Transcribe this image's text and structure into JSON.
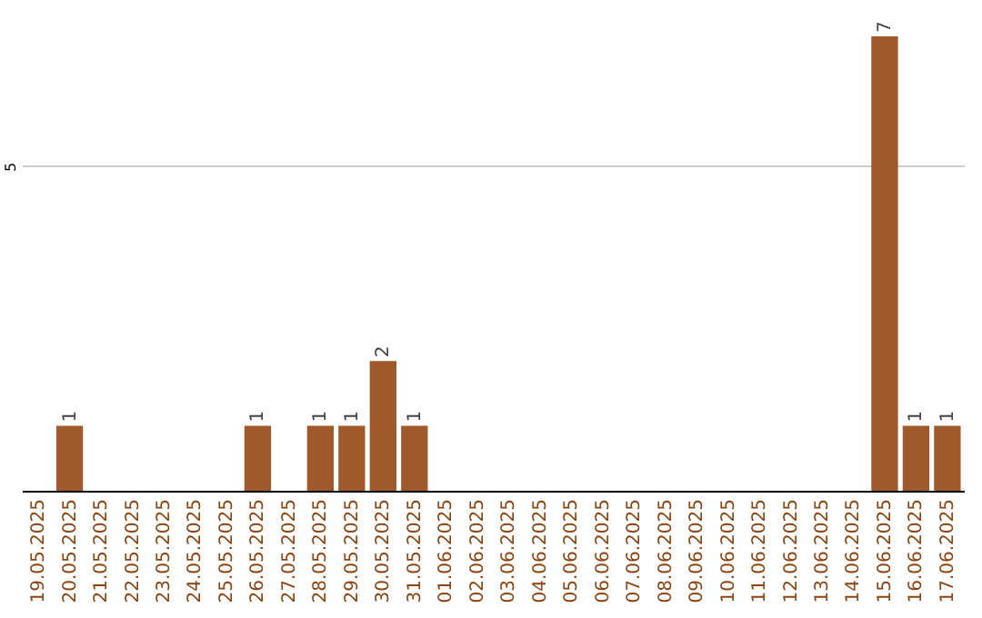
{
  "chart_data": {
    "type": "bar",
    "categories": [
      "19.05.2025",
      "20.05.2025",
      "21.05.2025",
      "22.05.2025",
      "23.05.2025",
      "24.05.2025",
      "25.05.2025",
      "26.05.2025",
      "27.05.2025",
      "28.05.2025",
      "29.05.2025",
      "30.05.2025",
      "31.05.2025",
      "01.06.2025",
      "02.06.2025",
      "03.06.2025",
      "04.06.2025",
      "05.06.2025",
      "06.06.2025",
      "07.06.2025",
      "08.06.2025",
      "09.06.2025",
      "10.06.2025",
      "11.06.2025",
      "12.06.2025",
      "13.06.2025",
      "14.06.2025",
      "15.06.2025",
      "16.06.2025",
      "17.06.2025"
    ],
    "values": [
      0,
      1,
      0,
      0,
      0,
      0,
      0,
      1,
      0,
      1,
      1,
      2,
      1,
      0,
      0,
      0,
      0,
      0,
      0,
      0,
      0,
      0,
      0,
      0,
      0,
      0,
      0,
      7,
      1,
      1
    ],
    "value_labels": [
      null,
      "1",
      null,
      null,
      null,
      null,
      null,
      "1",
      null,
      "1",
      "1",
      "2",
      "1",
      null,
      null,
      null,
      null,
      null,
      null,
      null,
      null,
      null,
      null,
      null,
      null,
      null,
      null,
      "7",
      "1",
      "1"
    ],
    "color": "#a0592a",
    "ylim": [
      0,
      7
    ],
    "yticks": [
      5
    ],
    "grid": "y"
  }
}
